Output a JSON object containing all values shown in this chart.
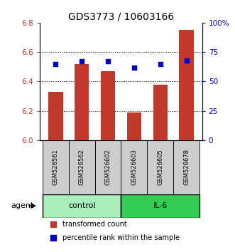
{
  "title": "GDS3773 / 10603166",
  "categories": [
    "GSM526561",
    "GSM526562",
    "GSM526602",
    "GSM526603",
    "GSM526605",
    "GSM526678"
  ],
  "bar_values": [
    6.33,
    6.52,
    6.47,
    6.19,
    6.38,
    6.75
  ],
  "bar_base": 6.0,
  "percentile_values": [
    65,
    67,
    67,
    62,
    65,
    68
  ],
  "ylim_left": [
    6.0,
    6.8
  ],
  "ylim_right": [
    0,
    100
  ],
  "yticks_left": [
    6.0,
    6.2,
    6.4,
    6.6,
    6.8
  ],
  "ytick_labels_right": [
    "0",
    "25",
    "50",
    "75",
    "100%"
  ],
  "yticks_right": [
    0,
    25,
    50,
    75,
    100
  ],
  "bar_color": "#c0392b",
  "dot_color": "#0000cc",
  "control_color": "#aaeebb",
  "il6_color": "#33cc55",
  "group_bg_color": "#cccccc",
  "control_label": "control",
  "il6_label": "IL-6",
  "agent_label": "agent",
  "legend_bar_label": "transformed count",
  "legend_dot_label": "percentile rank within the sample",
  "dotted_grid_values": [
    6.2,
    6.4,
    6.6
  ],
  "title_fontsize": 10,
  "tick_fontsize": 7.5,
  "label_fontsize": 8
}
